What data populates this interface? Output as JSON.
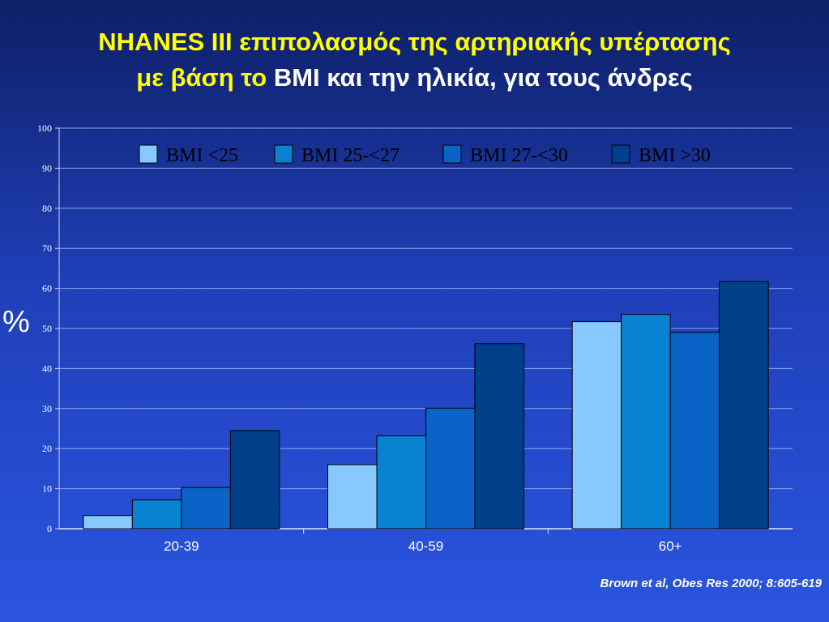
{
  "slide": {
    "title_line1": "NHANES III επιπολασμός της αρτηριακής υπέρτασης",
    "title_line2_part1": "με βάση το",
    "title_line2_part2": "BMI και την ηλικία, για τους άνδρες",
    "citation": "Brown et al, Obes Res 2000; 8:605-619"
  },
  "colors": {
    "background_top": "#0d1f66",
    "background_bottom": "#2a55e0",
    "title_highlight": "#ffff00",
    "series": [
      "#87c8ff",
      "#0a82d2",
      "#0a64c8",
      "#003f8a"
    ]
  },
  "chart_data": {
    "type": "bar",
    "categories": [
      "20-39",
      "40-59",
      "60+"
    ],
    "series": [
      {
        "name": "BMI <25",
        "values": [
          3.3,
          16.0,
          51.7
        ]
      },
      {
        "name": "BMI 25-<27",
        "values": [
          7.2,
          23.2,
          53.5
        ]
      },
      {
        "name": "BMI 27-<30",
        "values": [
          10.3,
          30.1,
          49.0
        ]
      },
      {
        "name": "BMI >30",
        "values": [
          24.5,
          46.2,
          61.7
        ]
      }
    ],
    "ylabel": "%",
    "ylim": [
      0,
      100
    ],
    "yticks": [
      0,
      10,
      20,
      30,
      40,
      50,
      60,
      70,
      80,
      90,
      100
    ],
    "grid": true,
    "legend_position": "top"
  }
}
